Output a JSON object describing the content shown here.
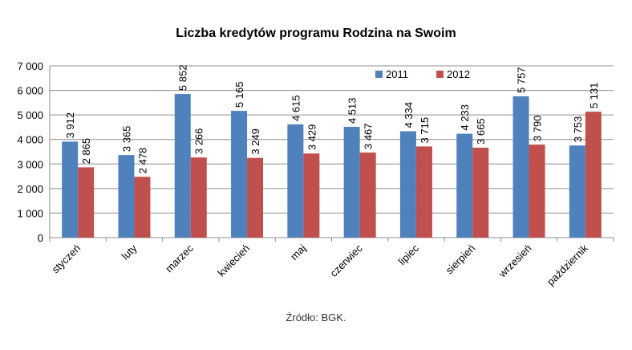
{
  "chart_data": {
    "type": "bar",
    "title": "Liczba kredytów programu Rodzina na Swoim",
    "source": "Źródło: BGK.",
    "categories": [
      "styczeń",
      "luty",
      "marzec",
      "kwiecień",
      "maj",
      "czerwiec",
      "lipiec",
      "sierpień",
      "wrzesień",
      "październik"
    ],
    "series": [
      {
        "name": "2011",
        "color": "#4f81bd",
        "values": [
          3912,
          3365,
          5852,
          5165,
          4615,
          4513,
          4334,
          4233,
          5757,
          3753
        ],
        "labels": [
          "3 912",
          "3 365",
          "5 852",
          "5 165",
          "4 615",
          "4 513",
          "4 334",
          "4 233",
          "5 757",
          "3 753"
        ]
      },
      {
        "name": "2012",
        "color": "#c0504d",
        "values": [
          2865,
          2478,
          3266,
          3249,
          3429,
          3467,
          3715,
          3665,
          3790,
          5131
        ],
        "labels": [
          "2 865",
          "2 478",
          "3 266",
          "3 249",
          "3 429",
          "3 467",
          "3 715",
          "3 665",
          "3 790",
          "5 131"
        ]
      }
    ],
    "ylim": [
      0,
      7000
    ],
    "yticks": [
      0,
      1000,
      2000,
      3000,
      4000,
      5000,
      6000,
      7000
    ],
    "ytick_labels": [
      "0",
      "1 000",
      "2 000",
      "3 000",
      "4 000",
      "5 000",
      "6 000",
      "7 000"
    ],
    "grid": true,
    "legend_position": "top-right"
  }
}
